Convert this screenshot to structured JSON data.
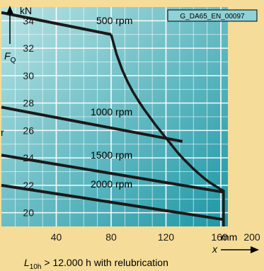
{
  "chart_data": {
    "type": "line",
    "figure_code": "G_DA65_EN_00097",
    "ylabel": "F",
    "ylabel_sub": "Q",
    "yunit": "kN",
    "xlabel": "x",
    "xunit": "mm",
    "footnote_main": "L",
    "footnote_sub": "10h",
    "footnote_rest": " > 12.000 h with relubrication",
    "stray_text": "r",
    "xlim": [
      0,
      200
    ],
    "ylim": [
      19,
      35
    ],
    "xticks": [
      {
        "v": 40,
        "label": "40"
      },
      {
        "v": 80,
        "label": "80"
      },
      {
        "v": 120,
        "label": "120"
      },
      {
        "v": 160,
        "label": "160"
      },
      {
        "v": 200,
        "label": "200"
      }
    ],
    "yticks": [
      {
        "v": 20,
        "label": "20"
      },
      {
        "v": 22,
        "label": "22"
      },
      {
        "v": 24,
        "label": "24"
      },
      {
        "v": 26,
        "label": "26"
      },
      {
        "v": 28,
        "label": "28"
      },
      {
        "v": 30,
        "label": "30"
      },
      {
        "v": 32,
        "label": "32"
      },
      {
        "v": 34,
        "label": "34"
      }
    ],
    "grid": true,
    "series": [
      {
        "name": "500 rpm",
        "x": [
          0,
          80
        ],
        "y": [
          34.6,
          33
        ]
      },
      {
        "name": "1000 rpm",
        "x": [
          0,
          132
        ],
        "y": [
          27.7,
          25.2
        ]
      },
      {
        "name": "1500 rpm",
        "x": [
          0,
          162
        ],
        "y": [
          24.2,
          21.5
        ]
      },
      {
        "name": "2000 rpm",
        "x": [
          0,
          162
        ],
        "y": [
          22,
          19.5
        ]
      }
    ],
    "limit_curve": {
      "x": [
        80,
        84,
        88,
        92,
        96,
        100,
        104,
        108,
        112,
        116,
        120,
        124,
        128,
        132,
        136,
        140,
        144,
        148,
        152,
        156,
        160,
        162,
        162
      ],
      "y": [
        33,
        31.55,
        30.45,
        29.55,
        28.8,
        28.15,
        27.55,
        27.0,
        26.45,
        25.95,
        25.45,
        24.95,
        24.45,
        24.0,
        23.6,
        23.2,
        22.85,
        22.5,
        22.2,
        21.95,
        21.7,
        21.6,
        19.0
      ]
    }
  }
}
